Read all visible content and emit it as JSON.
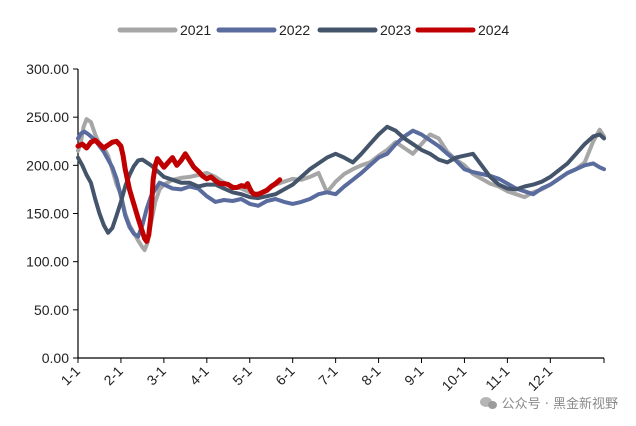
{
  "chart_data": {
    "type": "line",
    "x_ticks": [
      "1-1",
      "2-1",
      "3-1",
      "4-1",
      "5-1",
      "6-1",
      "7-1",
      "8-1",
      "9-1",
      "10-1",
      "11-1",
      "12-1"
    ],
    "ylim": [
      0,
      300
    ],
    "y_ticks": [
      "0.00",
      "50.00",
      "100.00",
      "150.00",
      "200.00",
      "250.00",
      "300.00"
    ],
    "grid": false,
    "legend_position": "top",
    "series": [
      {
        "name": "2021",
        "color": "#a6a6a6",
        "points": [
          [
            0,
            215
          ],
          [
            0.07,
            225
          ],
          [
            0.13,
            240
          ],
          [
            0.2,
            248
          ],
          [
            0.3,
            245
          ],
          [
            0.4,
            232
          ],
          [
            0.5,
            222
          ],
          [
            0.6,
            218
          ],
          [
            0.7,
            210
          ],
          [
            0.8,
            195
          ],
          [
            0.9,
            180
          ],
          [
            1.0,
            170
          ],
          [
            1.1,
            150
          ],
          [
            1.2,
            138
          ],
          [
            1.3,
            130
          ],
          [
            1.4,
            122
          ],
          [
            1.5,
            115
          ],
          [
            1.55,
            112
          ],
          [
            1.62,
            120
          ],
          [
            1.7,
            140
          ],
          [
            1.8,
            162
          ],
          [
            1.9,
            175
          ],
          [
            2.0,
            180
          ],
          [
            2.2,
            185
          ],
          [
            2.4,
            187
          ],
          [
            2.6,
            188
          ],
          [
            2.8,
            190
          ],
          [
            3.0,
            192
          ],
          [
            3.2,
            188
          ],
          [
            3.4,
            182
          ],
          [
            3.6,
            178
          ],
          [
            3.8,
            176
          ],
          [
            4.0,
            172
          ],
          [
            4.2,
            170
          ],
          [
            4.4,
            175
          ],
          [
            4.6,
            180
          ],
          [
            4.8,
            183
          ],
          [
            5.0,
            186
          ],
          [
            5.2,
            185
          ],
          [
            5.4,
            188
          ],
          [
            5.6,
            192
          ],
          [
            5.8,
            172
          ],
          [
            6.0,
            183
          ],
          [
            6.2,
            191
          ],
          [
            6.4,
            196
          ],
          [
            6.6,
            200
          ],
          [
            6.8,
            203
          ],
          [
            7.0,
            210
          ],
          [
            7.2,
            216
          ],
          [
            7.4,
            224
          ],
          [
            7.6,
            218
          ],
          [
            7.8,
            212
          ],
          [
            8.0,
            222
          ],
          [
            8.2,
            232
          ],
          [
            8.4,
            228
          ],
          [
            8.6,
            214
          ],
          [
            8.8,
            206
          ],
          [
            9.0,
            200
          ],
          [
            9.2,
            191
          ],
          [
            9.4,
            186
          ],
          [
            9.6,
            181
          ],
          [
            9.8,
            178
          ],
          [
            10.0,
            173
          ],
          [
            10.2,
            170
          ],
          [
            10.4,
            167
          ],
          [
            10.6,
            172
          ],
          [
            10.8,
            175
          ],
          [
            11.0,
            180
          ],
          [
            11.2,
            186
          ],
          [
            11.4,
            192
          ],
          [
            11.6,
            196
          ],
          [
            11.8,
            203
          ],
          [
            12.0,
            225
          ],
          [
            12.15,
            237
          ],
          [
            12.25,
            230
          ]
        ]
      },
      {
        "name": "2022",
        "color": "#5a6b9e",
        "points": [
          [
            0,
            228
          ],
          [
            0.07,
            233
          ],
          [
            0.15,
            235
          ],
          [
            0.25,
            232
          ],
          [
            0.4,
            226
          ],
          [
            0.5,
            220
          ],
          [
            0.6,
            214
          ],
          [
            0.7,
            206
          ],
          [
            0.8,
            198
          ],
          [
            0.9,
            186
          ],
          [
            1.0,
            168
          ],
          [
            1.1,
            148
          ],
          [
            1.2,
            136
          ],
          [
            1.3,
            129
          ],
          [
            1.4,
            126
          ],
          [
            1.5,
            138
          ],
          [
            1.6,
            155
          ],
          [
            1.7,
            168
          ],
          [
            1.8,
            175
          ],
          [
            1.9,
            182
          ],
          [
            2.0,
            180
          ],
          [
            2.2,
            176
          ],
          [
            2.4,
            175
          ],
          [
            2.6,
            178
          ],
          [
            2.8,
            176
          ],
          [
            3.0,
            168
          ],
          [
            3.2,
            162
          ],
          [
            3.4,
            164
          ],
          [
            3.6,
            163
          ],
          [
            3.8,
            165
          ],
          [
            4.0,
            160
          ],
          [
            4.2,
            158
          ],
          [
            4.4,
            163
          ],
          [
            4.6,
            165
          ],
          [
            4.8,
            162
          ],
          [
            5.0,
            160
          ],
          [
            5.2,
            162
          ],
          [
            5.4,
            165
          ],
          [
            5.6,
            170
          ],
          [
            5.8,
            172
          ],
          [
            6.0,
            170
          ],
          [
            6.2,
            178
          ],
          [
            6.4,
            185
          ],
          [
            6.6,
            192
          ],
          [
            6.8,
            200
          ],
          [
            7.0,
            208
          ],
          [
            7.2,
            212
          ],
          [
            7.4,
            222
          ],
          [
            7.6,
            230
          ],
          [
            7.8,
            236
          ],
          [
            8.0,
            232
          ],
          [
            8.2,
            226
          ],
          [
            8.4,
            220
          ],
          [
            8.6,
            212
          ],
          [
            8.8,
            205
          ],
          [
            9.0,
            196
          ],
          [
            9.2,
            193
          ],
          [
            9.4,
            191
          ],
          [
            9.6,
            189
          ],
          [
            9.8,
            186
          ],
          [
            10.0,
            181
          ],
          [
            10.2,
            176
          ],
          [
            10.4,
            173
          ],
          [
            10.6,
            170
          ],
          [
            10.8,
            176
          ],
          [
            11.0,
            180
          ],
          [
            11.2,
            186
          ],
          [
            11.4,
            192
          ],
          [
            11.6,
            196
          ],
          [
            11.8,
            200
          ],
          [
            12.0,
            202
          ],
          [
            12.15,
            198
          ],
          [
            12.25,
            196
          ]
        ]
      },
      {
        "name": "2023",
        "color": "#44546a",
        "points": [
          [
            0,
            208
          ],
          [
            0.1,
            200
          ],
          [
            0.2,
            190
          ],
          [
            0.3,
            182
          ],
          [
            0.4,
            165
          ],
          [
            0.5,
            150
          ],
          [
            0.6,
            138
          ],
          [
            0.7,
            130
          ],
          [
            0.8,
            135
          ],
          [
            0.9,
            148
          ],
          [
            1.0,
            162
          ],
          [
            1.1,
            178
          ],
          [
            1.2,
            190
          ],
          [
            1.3,
            199
          ],
          [
            1.4,
            205
          ],
          [
            1.5,
            206
          ],
          [
            1.6,
            203
          ],
          [
            1.7,
            200
          ],
          [
            1.8,
            196
          ],
          [
            1.9,
            192
          ],
          [
            2.0,
            188
          ],
          [
            2.2,
            185
          ],
          [
            2.4,
            182
          ],
          [
            2.6,
            182
          ],
          [
            2.8,
            178
          ],
          [
            3.0,
            180
          ],
          [
            3.2,
            180
          ],
          [
            3.4,
            176
          ],
          [
            3.6,
            172
          ],
          [
            3.8,
            170
          ],
          [
            4.0,
            167
          ],
          [
            4.2,
            166
          ],
          [
            4.4,
            168
          ],
          [
            4.6,
            170
          ],
          [
            4.8,
            175
          ],
          [
            5.0,
            180
          ],
          [
            5.2,
            188
          ],
          [
            5.4,
            196
          ],
          [
            5.6,
            202
          ],
          [
            5.8,
            208
          ],
          [
            6.0,
            212
          ],
          [
            6.2,
            208
          ],
          [
            6.4,
            203
          ],
          [
            6.6,
            212
          ],
          [
            6.8,
            222
          ],
          [
            7.0,
            232
          ],
          [
            7.2,
            240
          ],
          [
            7.4,
            236
          ],
          [
            7.6,
            228
          ],
          [
            7.8,
            222
          ],
          [
            8.0,
            216
          ],
          [
            8.2,
            212
          ],
          [
            8.4,
            206
          ],
          [
            8.6,
            203
          ],
          [
            8.8,
            208
          ],
          [
            9.0,
            210
          ],
          [
            9.2,
            212
          ],
          [
            9.4,
            200
          ],
          [
            9.6,
            188
          ],
          [
            9.8,
            180
          ],
          [
            10.0,
            176
          ],
          [
            10.2,
            175
          ],
          [
            10.4,
            178
          ],
          [
            10.6,
            180
          ],
          [
            10.8,
            183
          ],
          [
            11.0,
            188
          ],
          [
            11.2,
            195
          ],
          [
            11.4,
            202
          ],
          [
            11.6,
            212
          ],
          [
            11.8,
            222
          ],
          [
            12.0,
            230
          ],
          [
            12.15,
            232
          ],
          [
            12.25,
            228
          ]
        ]
      },
      {
        "name": "2024",
        "color": "#c00000",
        "points": [
          [
            0,
            220
          ],
          [
            0.1,
            222
          ],
          [
            0.2,
            218
          ],
          [
            0.3,
            224
          ],
          [
            0.4,
            226
          ],
          [
            0.5,
            222
          ],
          [
            0.6,
            218
          ],
          [
            0.7,
            221
          ],
          [
            0.8,
            224
          ],
          [
            0.9,
            225
          ],
          [
            1.0,
            220
          ],
          [
            1.05,
            210
          ],
          [
            1.1,
            196
          ],
          [
            1.2,
            175
          ],
          [
            1.3,
            160
          ],
          [
            1.4,
            145
          ],
          [
            1.5,
            131
          ],
          [
            1.55,
            124
          ],
          [
            1.6,
            121
          ],
          [
            1.65,
            128
          ],
          [
            1.7,
            148
          ],
          [
            1.75,
            185
          ],
          [
            1.8,
            200
          ],
          [
            1.85,
            207
          ],
          [
            1.9,
            204
          ],
          [
            2.0,
            198
          ],
          [
            2.1,
            203
          ],
          [
            2.2,
            208
          ],
          [
            2.3,
            200
          ],
          [
            2.4,
            205
          ],
          [
            2.5,
            212
          ],
          [
            2.6,
            205
          ],
          [
            2.7,
            198
          ],
          [
            2.8,
            194
          ],
          [
            2.9,
            189
          ],
          [
            3.0,
            186
          ],
          [
            3.1,
            188
          ],
          [
            3.2,
            184
          ],
          [
            3.3,
            181
          ],
          [
            3.4,
            181
          ],
          [
            3.5,
            180
          ],
          [
            3.6,
            177
          ],
          [
            3.7,
            177
          ],
          [
            3.8,
            179
          ],
          [
            3.9,
            178
          ],
          [
            3.95,
            181
          ],
          [
            4.0,
            176
          ],
          [
            4.05,
            172
          ],
          [
            4.1,
            170
          ],
          [
            4.2,
            170
          ],
          [
            4.3,
            172
          ],
          [
            4.35,
            173
          ],
          [
            4.4,
            174
          ],
          [
            4.5,
            178
          ],
          [
            4.6,
            181
          ],
          [
            4.65,
            183
          ],
          [
            4.7,
            185
          ]
        ]
      }
    ]
  },
  "legend": {
    "items": [
      "2021",
      "2022",
      "2023",
      "2024"
    ]
  },
  "watermark": {
    "text": "公众号 · 黑金新视野"
  }
}
